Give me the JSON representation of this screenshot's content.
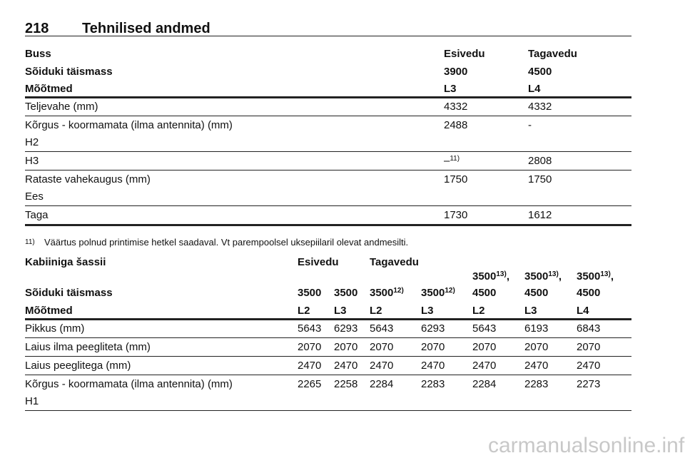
{
  "header": {
    "page_number": "218",
    "title": "Tehnilised andmed"
  },
  "table1": {
    "header_rows": [
      [
        "Buss",
        "Esivedu",
        "Tagavedu"
      ],
      [
        "Sõiduki täismass",
        "3900",
        "4500"
      ],
      [
        "Mõõtmed",
        "L3",
        "L4"
      ]
    ],
    "rows": [
      [
        [
          "Teljevahe (mm)",
          "4332",
          "4332"
        ]
      ],
      [
        [
          "Kõrgus - koormamata (ilma antennita) (mm)",
          "2488",
          "-"
        ],
        [
          "H2"
        ]
      ],
      [
        [
          "H3",
          {
            "text": "–",
            "note": "11)"
          },
          "2808"
        ]
      ],
      [
        [
          "Rataste vahekaugus (mm)",
          "1750",
          "1750"
        ],
        [
          "Ees"
        ]
      ],
      [
        [
          "Taga",
          "1730",
          "1612"
        ]
      ]
    ]
  },
  "footnote": {
    "marker": "11)",
    "text": "Väärtus polnud printimise hetkel saadaval. Vt parempoolsel uksepiilaril olevat andmesilti."
  },
  "table2": {
    "title": "Kabiiniga šassii",
    "groups": [
      "Esivedu",
      "Tagavedu"
    ],
    "mass_label": "Sõiduki täismass",
    "mass": [
      "3500",
      "3500",
      {
        "text": "3500",
        "note": "12)"
      },
      {
        "text": "3500",
        "note": "12)"
      },
      [
        {
          "text": "3500",
          "note": "13)",
          "after": ","
        },
        "4500"
      ],
      [
        {
          "text": "3500",
          "note": "13)",
          "after": ","
        },
        "4500"
      ],
      [
        {
          "text": "3500",
          "note": "13)",
          "after": ","
        },
        "4500"
      ]
    ],
    "dims_label": "Mõõtmed",
    "dims": [
      "L2",
      "L3",
      "L2",
      "L3",
      "L2",
      "L3",
      "L4"
    ],
    "rows": [
      [
        [
          "Pikkus (mm)",
          "5643",
          "6293",
          "5643",
          "6293",
          "5643",
          "6193",
          "6843"
        ]
      ],
      [
        [
          "Laius ilma peegliteta (mm)",
          "2070",
          "2070",
          "2070",
          "2070",
          "2070",
          "2070",
          "2070"
        ]
      ],
      [
        [
          "Laius peeglitega (mm)",
          "2470",
          "2470",
          "2470",
          "2470",
          "2470",
          "2470",
          "2470"
        ]
      ],
      [
        [
          "Kõrgus - koormamata (ilma antennita) (mm)",
          "2265",
          "2258",
          "2284",
          "2283",
          "2284",
          "2283",
          "2273"
        ],
        [
          "H1"
        ]
      ]
    ]
  },
  "watermark": "carmanualsonline.info"
}
